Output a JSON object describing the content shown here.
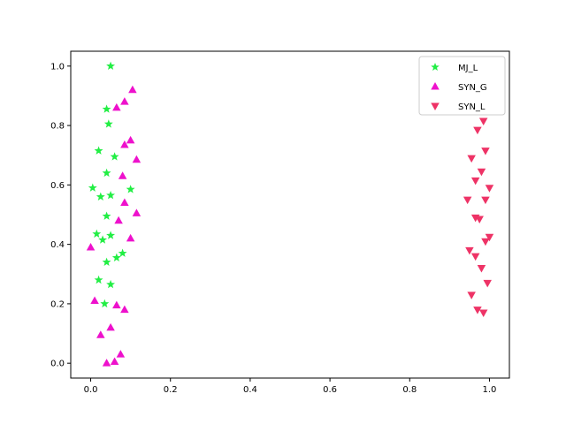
{
  "chart_data": {
    "type": "scatter",
    "title": "",
    "xlabel": "",
    "ylabel": "",
    "xlim": [
      -0.05,
      1.05
    ],
    "ylim": [
      -0.05,
      1.05
    ],
    "xticks": [
      0.0,
      0.2,
      0.4,
      0.6,
      0.8,
      1.0
    ],
    "yticks": [
      0.0,
      0.2,
      0.4,
      0.6,
      0.8,
      1.0
    ],
    "xtick_labels": [
      "0.0",
      "0.2",
      "0.4",
      "0.6",
      "0.8",
      "1.0"
    ],
    "ytick_labels": [
      "0.0",
      "0.2",
      "0.4",
      "0.6",
      "0.8",
      "1.0"
    ],
    "grid": false,
    "legend_position": "top-right",
    "series": [
      {
        "name": "MJ_L",
        "marker": "star",
        "color": "#22ee44",
        "points": [
          {
            "x": 0.05,
            "y": 1.0
          },
          {
            "x": 0.04,
            "y": 0.855
          },
          {
            "x": 0.045,
            "y": 0.805
          },
          {
            "x": 0.02,
            "y": 0.715
          },
          {
            "x": 0.06,
            "y": 0.695
          },
          {
            "x": 0.04,
            "y": 0.64
          },
          {
            "x": 0.005,
            "y": 0.59
          },
          {
            "x": 0.1,
            "y": 0.585
          },
          {
            "x": 0.025,
            "y": 0.56
          },
          {
            "x": 0.05,
            "y": 0.565
          },
          {
            "x": 0.04,
            "y": 0.495
          },
          {
            "x": 0.015,
            "y": 0.435
          },
          {
            "x": 0.05,
            "y": 0.43
          },
          {
            "x": 0.03,
            "y": 0.415
          },
          {
            "x": 0.08,
            "y": 0.37
          },
          {
            "x": 0.065,
            "y": 0.355
          },
          {
            "x": 0.04,
            "y": 0.34
          },
          {
            "x": 0.02,
            "y": 0.28
          },
          {
            "x": 0.05,
            "y": 0.265
          },
          {
            "x": 0.035,
            "y": 0.2
          }
        ]
      },
      {
        "name": "SYN_G",
        "marker": "triangle-up",
        "color": "#ee11cc",
        "points": [
          {
            "x": 0.105,
            "y": 0.92
          },
          {
            "x": 0.085,
            "y": 0.88
          },
          {
            "x": 0.065,
            "y": 0.86
          },
          {
            "x": 0.1,
            "y": 0.75
          },
          {
            "x": 0.085,
            "y": 0.735
          },
          {
            "x": 0.115,
            "y": 0.685
          },
          {
            "x": 0.08,
            "y": 0.63
          },
          {
            "x": 0.085,
            "y": 0.54
          },
          {
            "x": 0.115,
            "y": 0.505
          },
          {
            "x": 0.07,
            "y": 0.48
          },
          {
            "x": 0.1,
            "y": 0.42
          },
          {
            "x": 0.0,
            "y": 0.39
          },
          {
            "x": 0.01,
            "y": 0.21
          },
          {
            "x": 0.065,
            "y": 0.195
          },
          {
            "x": 0.085,
            "y": 0.18
          },
          {
            "x": 0.05,
            "y": 0.12
          },
          {
            "x": 0.025,
            "y": 0.095
          },
          {
            "x": 0.075,
            "y": 0.03
          },
          {
            "x": 0.06,
            "y": 0.005
          },
          {
            "x": 0.04,
            "y": 0.0
          }
        ]
      },
      {
        "name": "SYN_L",
        "marker": "triangle-down",
        "color": "#ee3366",
        "points": [
          {
            "x": 0.985,
            "y": 0.815
          },
          {
            "x": 0.97,
            "y": 0.785
          },
          {
            "x": 0.99,
            "y": 0.715
          },
          {
            "x": 0.955,
            "y": 0.69
          },
          {
            "x": 0.98,
            "y": 0.645
          },
          {
            "x": 0.965,
            "y": 0.615
          },
          {
            "x": 1.0,
            "y": 0.59
          },
          {
            "x": 0.945,
            "y": 0.55
          },
          {
            "x": 0.99,
            "y": 0.55
          },
          {
            "x": 0.965,
            "y": 0.49
          },
          {
            "x": 0.975,
            "y": 0.485
          },
          {
            "x": 1.0,
            "y": 0.425
          },
          {
            "x": 0.99,
            "y": 0.41
          },
          {
            "x": 0.95,
            "y": 0.38
          },
          {
            "x": 0.965,
            "y": 0.36
          },
          {
            "x": 0.98,
            "y": 0.32
          },
          {
            "x": 0.995,
            "y": 0.27
          },
          {
            "x": 0.955,
            "y": 0.23
          },
          {
            "x": 0.97,
            "y": 0.18
          },
          {
            "x": 0.985,
            "y": 0.17
          }
        ]
      }
    ]
  }
}
